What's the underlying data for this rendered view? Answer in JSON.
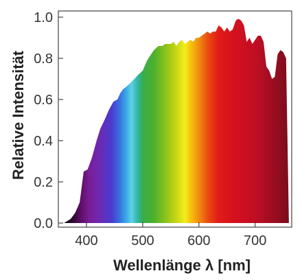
{
  "chart_data": {
    "type": "area",
    "title": "",
    "xlabel": "Wellenlänge λ [nm]",
    "ylabel": "Relative Intensität",
    "xlim": [
      350,
      765
    ],
    "ylim": [
      -0.02,
      1.03
    ],
    "xticks": [
      400,
      500,
      600,
      700
    ],
    "yticks": [
      0.0,
      0.2,
      0.4,
      0.6,
      0.8,
      1.0
    ],
    "xtick_labels": [
      "400",
      "500",
      "600",
      "700"
    ],
    "ytick_labels": [
      "0.0",
      "0.2",
      "0.4",
      "0.6",
      "0.8",
      "1.0"
    ],
    "grid": false,
    "fill": "visible spectrum gradient (violet → blue → cyan → green → yellow → orange → red → dark red)",
    "series": [
      {
        "x": [
          360,
          372,
          380,
          388,
          395,
          402,
          410,
          418,
          425,
          432,
          440,
          448,
          455,
          460,
          465,
          470,
          478,
          485,
          492,
          500,
          508,
          515,
          520,
          528,
          535,
          540,
          545,
          550,
          555,
          560,
          565,
          570,
          575,
          580,
          585,
          590,
          595,
          600,
          605,
          610,
          615,
          620,
          625,
          630,
          635,
          640,
          645,
          650,
          655,
          660,
          665,
          668,
          672,
          676,
          680,
          685,
          690,
          695,
          700,
          705,
          710,
          715,
          720,
          725,
          730,
          735,
          740,
          745,
          750,
          755,
          760
        ],
        "y": [
          0.0,
          0.02,
          0.05,
          0.1,
          0.25,
          0.26,
          0.32,
          0.4,
          0.46,
          0.5,
          0.55,
          0.59,
          0.6,
          0.63,
          0.65,
          0.66,
          0.68,
          0.7,
          0.72,
          0.74,
          0.79,
          0.82,
          0.84,
          0.86,
          0.86,
          0.87,
          0.87,
          0.87,
          0.88,
          0.86,
          0.88,
          0.89,
          0.87,
          0.88,
          0.89,
          0.88,
          0.9,
          0.9,
          0.91,
          0.92,
          0.93,
          0.92,
          0.93,
          0.93,
          0.96,
          0.95,
          0.93,
          0.95,
          0.93,
          0.94,
          0.98,
          0.99,
          0.99,
          0.98,
          0.96,
          0.88,
          0.9,
          0.87,
          0.89,
          0.91,
          0.91,
          0.88,
          0.76,
          0.74,
          0.7,
          0.71,
          0.82,
          0.84,
          0.83,
          0.8,
          0.0
        ]
      }
    ]
  }
}
